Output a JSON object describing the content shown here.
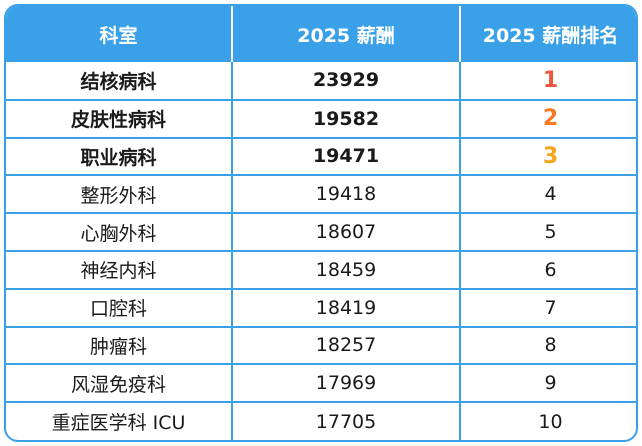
{
  "header": {
    "department": "科室",
    "salary": "2025 薪酬",
    "rank": "2025 薪酬排名"
  },
  "rows": [
    {
      "department": "结核病科",
      "salary": "23929",
      "rank": "1"
    },
    {
      "department": "皮肤性病科",
      "salary": "19582",
      "rank": "2"
    },
    {
      "department": "职业病科",
      "salary": "19471",
      "rank": "3"
    },
    {
      "department": "整形外科",
      "salary": "19418",
      "rank": "4"
    },
    {
      "department": "心胸外科",
      "salary": "18607",
      "rank": "5"
    },
    {
      "department": "神经内科",
      "salary": "18459",
      "rank": "6"
    },
    {
      "department": "口腔科",
      "salary": "18419",
      "rank": "7"
    },
    {
      "department": "肿瘤科",
      "salary": "18257",
      "rank": "8"
    },
    {
      "department": "风湿免疫科",
      "salary": "17969",
      "rank": "9"
    },
    {
      "department": "重症医学科 ICU",
      "salary": "17705",
      "rank": "10"
    }
  ],
  "colors": {
    "accent": "#3aa0e8",
    "rank1": "#f0573c",
    "rank2": "#f57a21",
    "rank3": "#f5a41c"
  }
}
